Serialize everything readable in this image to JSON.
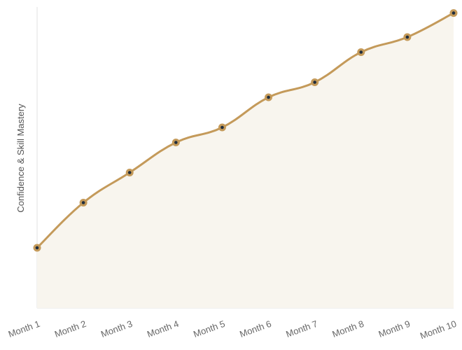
{
  "chart_data": {
    "type": "area",
    "y_label": "Confidence & Skill Mastery",
    "categories": [
      "Month 1",
      "Month 2",
      "Month 3",
      "Month 4",
      "Month 5",
      "Month 6",
      "Month 7",
      "Month 8",
      "Month 9",
      "Month 10"
    ],
    "values": [
      20,
      35,
      45,
      55,
      60,
      70,
      75,
      85,
      90,
      98
    ],
    "ylim": [
      0,
      100
    ],
    "color": "#c49a5a",
    "fill_color": "#f8f5ee",
    "marker_center_color": "#1f2d3d"
  }
}
